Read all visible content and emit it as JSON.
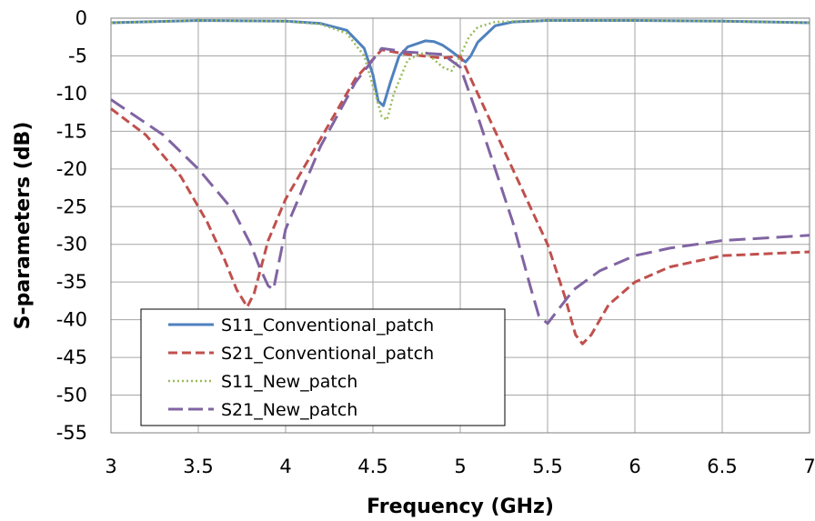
{
  "chart_data": {
    "type": "line",
    "title": "",
    "xlabel": "Frequency (GHz)",
    "ylabel": "S-parameters (dB)",
    "xlim": [
      3,
      7
    ],
    "ylim": [
      -55,
      0
    ],
    "xticks": [
      "3",
      "3.5",
      "4",
      "4.5",
      "5",
      "5.5",
      "6",
      "6.5",
      "7"
    ],
    "yticks": [
      "0",
      "-5",
      "-10",
      "-15",
      "-20",
      "-25",
      "-30",
      "-35",
      "-40",
      "-45",
      "-50",
      "-55"
    ],
    "grid": true,
    "legend_position": "bottom-left",
    "series": [
      {
        "name": "S11_Conventional_patch",
        "color": "#4f81bd",
        "dash": "solid",
        "x": [
          3.0,
          3.5,
          4.0,
          4.2,
          4.35,
          4.45,
          4.5,
          4.53,
          4.56,
          4.6,
          4.65,
          4.7,
          4.8,
          4.85,
          4.9,
          4.95,
          5.0,
          5.03,
          5.06,
          5.1,
          5.2,
          5.3,
          5.5,
          6.0,
          6.5,
          7.0
        ],
        "y": [
          -0.6,
          -0.3,
          -0.4,
          -0.7,
          -1.6,
          -4.0,
          -7.5,
          -11.0,
          -11.6,
          -8.5,
          -5.0,
          -3.8,
          -3.0,
          -3.1,
          -3.6,
          -4.4,
          -5.3,
          -5.8,
          -5.0,
          -3.2,
          -1.0,
          -0.5,
          -0.3,
          -0.3,
          -0.4,
          -0.6
        ]
      },
      {
        "name": "S21_Conventional_patch",
        "color": "#c0504d",
        "dash": "dashed",
        "x": [
          3.0,
          3.2,
          3.4,
          3.55,
          3.65,
          3.72,
          3.78,
          3.82,
          3.9,
          4.0,
          4.2,
          4.4,
          4.55,
          4.7,
          4.9,
          5.0,
          5.1,
          5.3,
          5.5,
          5.6,
          5.66,
          5.7,
          5.75,
          5.85,
          6.0,
          6.2,
          6.5,
          7.0
        ],
        "y": [
          -12.0,
          -15.5,
          -21.0,
          -27.0,
          -32.0,
          -36.0,
          -38.3,
          -36.5,
          -29.5,
          -24.0,
          -16.0,
          -8.0,
          -4.2,
          -4.8,
          -5.3,
          -5.0,
          -10.0,
          -20.0,
          -30.0,
          -37.0,
          -42.0,
          -43.2,
          -42.0,
          -38.0,
          -35.0,
          -33.0,
          -31.5,
          -31.0
        ]
      },
      {
        "name": "S11_New_patch",
        "color": "#9bbb59",
        "dash": "dotted",
        "x": [
          3.0,
          3.5,
          4.0,
          4.2,
          4.35,
          4.45,
          4.5,
          4.55,
          4.58,
          4.62,
          4.7,
          4.8,
          4.9,
          4.95,
          5.0,
          5.05,
          5.1,
          5.2,
          5.5,
          6.0,
          6.5,
          7.0
        ],
        "y": [
          -0.6,
          -0.3,
          -0.4,
          -0.8,
          -2.0,
          -5.0,
          -9.0,
          -13.0,
          -13.5,
          -10.0,
          -5.5,
          -4.5,
          -6.5,
          -7.0,
          -5.0,
          -2.5,
          -1.2,
          -0.5,
          -0.3,
          -0.3,
          -0.4,
          -0.6
        ]
      },
      {
        "name": "S21_New_patch",
        "color": "#8064a2",
        "dash": "longdash",
        "x": [
          3.0,
          3.3,
          3.5,
          3.7,
          3.8,
          3.85,
          3.9,
          3.93,
          4.0,
          4.2,
          4.4,
          4.55,
          4.7,
          4.9,
          5.0,
          5.1,
          5.3,
          5.4,
          5.45,
          5.5,
          5.55,
          5.65,
          5.8,
          6.0,
          6.2,
          6.5,
          7.0
        ],
        "y": [
          -10.8,
          -15.5,
          -20.0,
          -25.5,
          -30.0,
          -33.0,
          -35.5,
          -36.0,
          -28.0,
          -17.0,
          -8.5,
          -4.0,
          -4.5,
          -4.8,
          -6.5,
          -13.0,
          -27.0,
          -35.5,
          -39.5,
          -40.5,
          -39.0,
          -36.0,
          -33.5,
          -31.5,
          -30.5,
          -29.5,
          -28.8
        ]
      }
    ]
  }
}
